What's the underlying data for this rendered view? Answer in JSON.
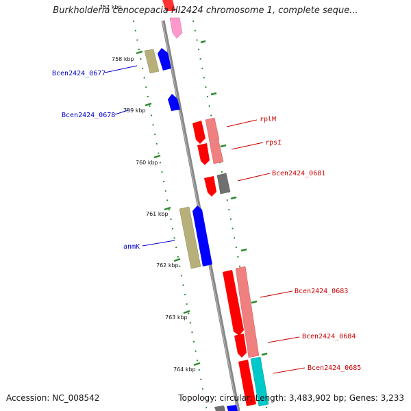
{
  "title": "Burkholderia cenocepacia HI2424 chromosome 1, complete seque...",
  "footer": {
    "accession": "Accession: NC_008542",
    "summary": "Topology: circular; Length: 3,483,902 bp; Genes: 3,233"
  },
  "scale_labels": [
    "757 kbp",
    "758 kbp",
    "759 kbp",
    "760 kbp",
    "761 kbp",
    "762 kbp",
    "763 kbp",
    "764 kbp"
  ],
  "gene_labels": {
    "left": [
      "Bcen2424_0677",
      "Bcen2424_0678",
      "anmK"
    ],
    "right": [
      "rplM",
      "rpsI",
      "Bcen2424_0681",
      "Bcen2424_0683",
      "Bcen2424_0684",
      "Bcen2424_0685"
    ]
  },
  "colors": {
    "forward_strand": "#0000ff",
    "reverse_strand": "#ff0000",
    "cog_olive": "#b8b07a",
    "cog_salmon": "#f08080",
    "cog_gray": "#707070",
    "cog_cyan": "#00c8c8",
    "cog_pink": "#ff99cc",
    "backbone": "#888888",
    "tick": "#2a8a2a",
    "left_label": "#0000cc",
    "right_label": "#cc0000"
  }
}
